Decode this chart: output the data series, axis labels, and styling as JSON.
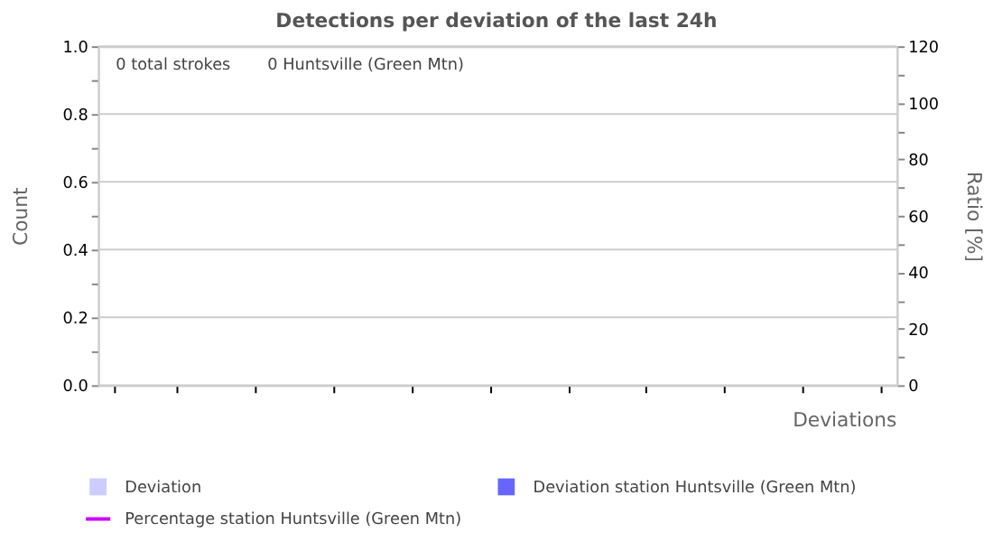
{
  "chart_data": {
    "type": "bar",
    "title": "Detections per deviation of the last 24h",
    "xlabel": "Deviations",
    "ylabel": "Count",
    "y2label": "Ratio [%]",
    "annotations": [
      "0 total strokes",
      "0 Huntsville (Green Mtn)"
    ],
    "categories": [
      null,
      null,
      null,
      null,
      null,
      null,
      null,
      null,
      null,
      null
    ],
    "series": [
      {
        "name": "Deviation",
        "color": "#ccccff",
        "values": [
          null,
          null,
          null,
          null,
          null,
          null,
          null,
          null,
          null,
          null
        ]
      },
      {
        "name": "Deviation station Huntsville (Green Mtn)",
        "color": "#6666ff",
        "values": [
          null,
          null,
          null,
          null,
          null,
          null,
          null,
          null,
          null,
          null
        ]
      },
      {
        "name": "Percentage station Huntsville (Green Mtn)",
        "color": "#cc00ff",
        "type": "line",
        "axis": "y2",
        "values": [
          null,
          null,
          null,
          null,
          null,
          null,
          null,
          null,
          null,
          null
        ]
      }
    ],
    "ylim": [
      0,
      1
    ],
    "yticks": [
      {
        "value": 0,
        "label": "0.0"
      },
      {
        "value": 0.1,
        "label": null
      },
      {
        "value": 0.2,
        "label": "0.2"
      },
      {
        "value": 0.3,
        "label": null
      },
      {
        "value": 0.4,
        "label": "0.4"
      },
      {
        "value": 0.5,
        "label": null
      },
      {
        "value": 0.6,
        "label": "0.6"
      },
      {
        "value": 0.7,
        "label": null
      },
      {
        "value": 0.8,
        "label": "0.8"
      },
      {
        "value": 0.9,
        "label": null
      },
      {
        "value": 1,
        "label": "1.0"
      }
    ],
    "y2lim": [
      0,
      120
    ],
    "y2ticks": [
      0,
      {
        "value": 10,
        "label": null
      },
      20,
      {
        "value": 30,
        "label": null
      },
      40,
      {
        "value": 50,
        "label": null
      },
      60,
      {
        "value": 70,
        "label": null
      },
      80,
      {
        "value": 90,
        "label": null
      },
      100,
      {
        "value": 110,
        "label": null
      },
      120
    ],
    "grid": "y",
    "legend": "bottom",
    "tick_labels": "y"
  }
}
